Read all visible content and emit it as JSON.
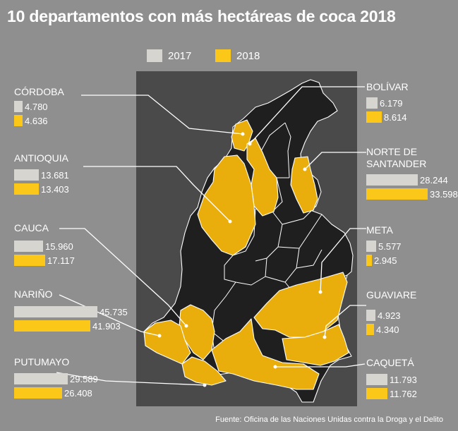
{
  "title": "10 departamentos con más hectáreas de coca 2018",
  "source": "Fuente: Oficina de las Naciones Unidas contra la Droga y el Delito",
  "colors": {
    "background": "#8f8f8f",
    "map_bg": "#4a4a4a",
    "bar_2017": "#d6d5d0",
    "bar_2018": "#fbc81a",
    "map_dept": "#1f1f1f",
    "map_highlight": "#e9ae0c"
  },
  "chart_data": {
    "type": "bar",
    "title": "10 departamentos con más hectáreas de coca 2018",
    "series": [
      {
        "name": "2017",
        "values": [
          4780,
          13681,
          15960,
          45735,
          29589,
          6179,
          28244,
          5577,
          4923,
          11793
        ]
      },
      {
        "name": "2018",
        "values": [
          4636,
          13403,
          17117,
          41903,
          26408,
          8614,
          33598,
          2945,
          4340,
          11762
        ]
      }
    ],
    "categories": [
      "CÓRDOBA",
      "ANTIOQUIA",
      "CAUCA",
      "NARIÑO",
      "PUTUMAYO",
      "BOLÍVAR",
      "NORTE DE SANTANDER",
      "META",
      "GUAVIARE",
      "CAQUETÁ"
    ],
    "items": [
      {
        "name": "CÓRDOBA",
        "v2017": 4780,
        "v2018": 4636,
        "label2017": "4.780",
        "label2018": "4.636"
      },
      {
        "name": "ANTIOQUIA",
        "v2017": 13681,
        "v2018": 13403,
        "label2017": "13.681",
        "label2018": "13.403"
      },
      {
        "name": "CAUCA",
        "v2017": 15960,
        "v2018": 17117,
        "label2017": "15.960",
        "label2018": "17.117"
      },
      {
        "name": "NARIÑO",
        "v2017": 45735,
        "v2018": 41903,
        "label2017": "45.735",
        "label2018": "41.903"
      },
      {
        "name": "PUTUMAYO",
        "v2017": 29589,
        "v2018": 26408,
        "label2017": "29.589",
        "label2018": "26.408"
      },
      {
        "name": "BOLÍVAR",
        "v2017": 6179,
        "v2018": 8614,
        "label2017": "6.179",
        "label2018": "8.614"
      },
      {
        "name": "NORTE DE SANTANDER",
        "v2017": 28244,
        "v2018": 33598,
        "label2017": "28.244",
        "label2018": "33.598"
      },
      {
        "name": "META",
        "v2017": 5577,
        "v2018": 2945,
        "label2017": "5.577",
        "label2018": "2.945"
      },
      {
        "name": "GUAVIARE",
        "v2017": 4923,
        "v2018": 4340,
        "label2017": "4.923",
        "label2018": "4.340"
      },
      {
        "name": "CAQUETÁ",
        "v2017": 11793,
        "v2018": 11762,
        "label2017": "11.793",
        "label2018": "11.762"
      }
    ]
  }
}
